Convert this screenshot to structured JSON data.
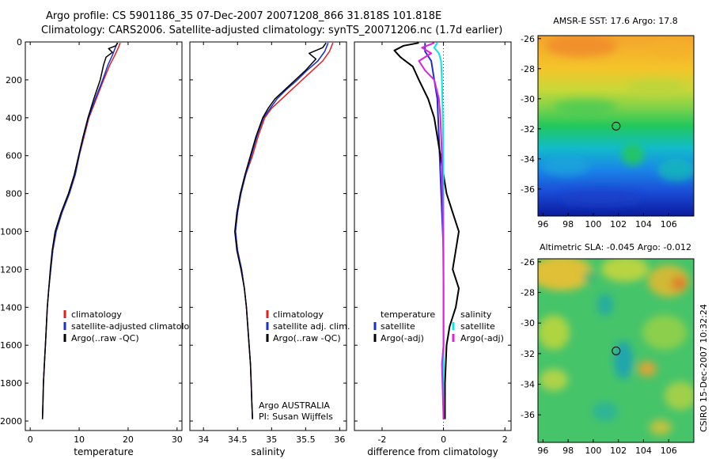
{
  "figure": {
    "title_line1": "Argo profile: CS 5901186_35 07-Dec-2007 20071208_866 31.818S 101.818E",
    "title_line2": "Climatology: CARS2006. Satellite-adjusted climatology: synTS_20071206.nc (1.7d earlier)",
    "credit": "CSIRO 15-Dec-2007 10:32:24"
  },
  "colors": {
    "climatology": "#e02020",
    "satellite": "#1a2ecc",
    "argo": "#000000",
    "satellite_salinity": "#00e8e8",
    "argo_salinity": "#e020e0"
  },
  "chart_data": [
    {
      "type": "line",
      "name": "temperature-profile",
      "xlabel": "temperature",
      "xlim": [
        -1,
        31
      ],
      "ylim": [
        2050,
        0
      ],
      "xticks": [
        0,
        10,
        20,
        30
      ],
      "yticks": [
        0,
        200,
        400,
        600,
        800,
        1000,
        1200,
        1400,
        1600,
        1800,
        2000
      ],
      "legend": [
        "climatology",
        "satellite-adjusted climatology",
        "Argo(..raw -QC)"
      ],
      "series": [
        {
          "name": "climatology",
          "points": [
            [
              18.4,
              5
            ],
            [
              18.0,
              30
            ],
            [
              17.3,
              70
            ],
            [
              16.3,
              120
            ],
            [
              15.0,
              200
            ],
            [
              13.5,
              300
            ],
            [
              12.0,
              400
            ],
            [
              11.0,
              500
            ],
            [
              10.0,
              600
            ],
            [
              9.2,
              700
            ],
            [
              8.0,
              800
            ],
            [
              6.5,
              900
            ],
            [
              5.3,
              1000
            ],
            [
              4.6,
              1100
            ],
            [
              4.2,
              1200
            ],
            [
              3.8,
              1300
            ],
            [
              3.5,
              1400
            ],
            [
              3.3,
              1500
            ],
            [
              3.1,
              1600
            ],
            [
              2.9,
              1700
            ],
            [
              2.7,
              1800
            ],
            [
              2.6,
              1900
            ],
            [
              2.5,
              1990
            ]
          ]
        },
        {
          "name": "satellite-adjusted climatology",
          "points": [
            [
              17.8,
              5
            ],
            [
              17.4,
              30
            ],
            [
              16.8,
              70
            ],
            [
              15.9,
              120
            ],
            [
              14.8,
              200
            ],
            [
              13.3,
              300
            ],
            [
              11.9,
              400
            ],
            [
              10.9,
              500
            ],
            [
              10.0,
              600
            ],
            [
              9.2,
              700
            ],
            [
              8.0,
              800
            ],
            [
              6.5,
              900
            ],
            [
              5.3,
              1000
            ],
            [
              4.6,
              1100
            ],
            [
              4.2,
              1200
            ],
            [
              3.8,
              1300
            ],
            [
              3.5,
              1400
            ],
            [
              3.3,
              1500
            ],
            [
              3.1,
              1600
            ],
            [
              2.9,
              1700
            ],
            [
              2.7,
              1800
            ],
            [
              2.6,
              1900
            ],
            [
              2.5,
              1990
            ]
          ]
        },
        {
          "name": "Argo(..raw -QC)",
          "points": [
            [
              17.9,
              5
            ],
            [
              17.5,
              20
            ],
            [
              16.0,
              35
            ],
            [
              16.8,
              55
            ],
            [
              15.5,
              80
            ],
            [
              15.0,
              120
            ],
            [
              14.3,
              200
            ],
            [
              13.0,
              300
            ],
            [
              11.8,
              400
            ],
            [
              10.8,
              500
            ],
            [
              9.9,
              600
            ],
            [
              9.0,
              700
            ],
            [
              7.8,
              800
            ],
            [
              6.3,
              900
            ],
            [
              5.1,
              1000
            ],
            [
              4.5,
              1100
            ],
            [
              4.1,
              1200
            ],
            [
              3.8,
              1300
            ],
            [
              3.5,
              1400
            ],
            [
              3.3,
              1500
            ],
            [
              3.1,
              1600
            ],
            [
              2.9,
              1700
            ],
            [
              2.7,
              1800
            ],
            [
              2.6,
              1900
            ],
            [
              2.5,
              1990
            ]
          ]
        }
      ]
    },
    {
      "type": "line",
      "name": "salinity-profile",
      "xlabel": "salinity",
      "xlim": [
        33.8,
        36.1
      ],
      "ylim": [
        2050,
        0
      ],
      "xticks": [
        34,
        34.5,
        35,
        35.5,
        36
      ],
      "legend": [
        "climatology",
        "satellite adj. clim.",
        "Argo(..raw -QC)"
      ],
      "annotation_line1": "Argo AUSTRALIA",
      "annotation_line2": "PI: Susan Wijffels",
      "series": [
        {
          "name": "climatology",
          "points": [
            [
              35.9,
              5
            ],
            [
              35.85,
              50
            ],
            [
              35.75,
              100
            ],
            [
              35.6,
              150
            ],
            [
              35.45,
              200
            ],
            [
              35.3,
              250
            ],
            [
              35.15,
              300
            ],
            [
              35.0,
              350
            ],
            [
              34.9,
              400
            ],
            [
              34.8,
              500
            ],
            [
              34.72,
              600
            ],
            [
              34.62,
              700
            ],
            [
              34.55,
              800
            ],
            [
              34.5,
              900
            ],
            [
              34.47,
              1000
            ],
            [
              34.5,
              1100
            ],
            [
              34.56,
              1200
            ],
            [
              34.6,
              1300
            ],
            [
              34.63,
              1400
            ],
            [
              34.65,
              1500
            ],
            [
              34.67,
              1600
            ],
            [
              34.69,
              1700
            ],
            [
              34.7,
              1800
            ],
            [
              34.71,
              1900
            ],
            [
              34.72,
              1990
            ]
          ]
        },
        {
          "name": "satellite adj. clim.",
          "points": [
            [
              35.83,
              5
            ],
            [
              35.78,
              50
            ],
            [
              35.68,
              100
            ],
            [
              35.52,
              150
            ],
            [
              35.38,
              200
            ],
            [
              35.22,
              250
            ],
            [
              35.08,
              300
            ],
            [
              34.98,
              350
            ],
            [
              34.88,
              400
            ],
            [
              34.78,
              500
            ],
            [
              34.7,
              600
            ],
            [
              34.62,
              700
            ],
            [
              34.55,
              800
            ],
            [
              34.5,
              900
            ],
            [
              34.47,
              1000
            ],
            [
              34.5,
              1100
            ],
            [
              34.56,
              1200
            ],
            [
              34.6,
              1300
            ],
            [
              34.63,
              1400
            ],
            [
              34.65,
              1500
            ],
            [
              34.67,
              1600
            ],
            [
              34.69,
              1700
            ],
            [
              34.7,
              1800
            ],
            [
              34.71,
              1900
            ],
            [
              34.72,
              1990
            ]
          ]
        },
        {
          "name": "Argo(..raw -QC)",
          "points": [
            [
              35.8,
              5
            ],
            [
              35.75,
              30
            ],
            [
              35.55,
              60
            ],
            [
              35.65,
              90
            ],
            [
              35.5,
              150
            ],
            [
              35.35,
              200
            ],
            [
              35.2,
              250
            ],
            [
              35.05,
              300
            ],
            [
              34.95,
              350
            ],
            [
              34.87,
              400
            ],
            [
              34.77,
              500
            ],
            [
              34.69,
              600
            ],
            [
              34.61,
              700
            ],
            [
              34.54,
              800
            ],
            [
              34.49,
              900
            ],
            [
              34.46,
              1000
            ],
            [
              34.49,
              1100
            ],
            [
              34.55,
              1200
            ],
            [
              34.6,
              1300
            ],
            [
              34.63,
              1400
            ],
            [
              34.65,
              1500
            ],
            [
              34.67,
              1600
            ],
            [
              34.69,
              1700
            ],
            [
              34.7,
              1800
            ],
            [
              34.71,
              1900
            ],
            [
              34.72,
              1990
            ]
          ]
        }
      ]
    },
    {
      "type": "line",
      "name": "difference-profile",
      "xlabel": "difference from climatology",
      "xlim": [
        -2.9,
        2.2
      ],
      "ylim": [
        2050,
        0
      ],
      "xticks": [
        -2,
        0,
        2
      ],
      "legend_temperature_header": "temperature",
      "legend_salinity_header": "salinity",
      "legend_temperature": [
        "satellite",
        "Argo(-adj)"
      ],
      "legend_salinity": [
        "satellite",
        "Argo(-adj)"
      ],
      "series": [
        {
          "name": "temperature satellite",
          "points": [
            [
              -0.6,
              5
            ],
            [
              -0.6,
              50
            ],
            [
              -0.4,
              100
            ],
            [
              -0.3,
              200
            ],
            [
              -0.2,
              300
            ],
            [
              -0.15,
              500
            ],
            [
              -0.1,
              700
            ],
            [
              -0.05,
              900
            ],
            [
              0.0,
              1100
            ],
            [
              0.0,
              1500
            ],
            [
              0.0,
              1990
            ]
          ]
        },
        {
          "name": "temperature Argo(-adj)",
          "points": [
            [
              -0.8,
              5
            ],
            [
              -1.3,
              20
            ],
            [
              -1.6,
              45
            ],
            [
              -1.4,
              80
            ],
            [
              -1.0,
              130
            ],
            [
              -0.8,
              200
            ],
            [
              -0.5,
              300
            ],
            [
              -0.3,
              400
            ],
            [
              -0.1,
              600
            ],
            [
              0.1,
              800
            ],
            [
              0.3,
              900
            ],
            [
              0.5,
              1000
            ],
            [
              0.4,
              1100
            ],
            [
              0.3,
              1200
            ],
            [
              0.5,
              1300
            ],
            [
              0.4,
              1400
            ],
            [
              0.2,
              1500
            ],
            [
              0.1,
              1600
            ],
            [
              0.05,
              1800
            ],
            [
              0.05,
              1990
            ]
          ]
        },
        {
          "name": "salinity satellite",
          "points": [
            [
              -0.2,
              5
            ],
            [
              -0.3,
              30
            ],
            [
              -0.15,
              60
            ],
            [
              -0.08,
              100
            ],
            [
              -0.05,
              200
            ],
            [
              -0.02,
              400
            ],
            [
              0.0,
              800
            ],
            [
              0.0,
              1200
            ],
            [
              0.0,
              1600
            ],
            [
              0.0,
              1990
            ]
          ]
        },
        {
          "name": "salinity Argo(-adj)",
          "points": [
            [
              -0.3,
              5
            ],
            [
              -0.7,
              30
            ],
            [
              -0.4,
              60
            ],
            [
              -0.8,
              100
            ],
            [
              -0.6,
              150
            ],
            [
              -0.3,
              200
            ],
            [
              -0.15,
              300
            ],
            [
              -0.1,
              400
            ],
            [
              -0.05,
              600
            ],
            [
              -0.02,
              900
            ],
            [
              0.0,
              1300
            ],
            [
              0.0,
              1600
            ],
            [
              -0.05,
              1700
            ],
            [
              0.0,
              1990
            ]
          ]
        }
      ]
    },
    {
      "type": "heatmap",
      "name": "amsr-sst-map",
      "title": "AMSR-E SST: 17.6 Argo: 17.8",
      "xlim": [
        95.6,
        108
      ],
      "ylim": [
        -37.8,
        -25.8
      ],
      "xticks": [
        96,
        98,
        100,
        102,
        104,
        106
      ],
      "yticks": [
        -26,
        -28,
        -30,
        -32,
        -34,
        -36
      ],
      "marker": [
        101.818,
        -31.818
      ]
    },
    {
      "type": "heatmap",
      "name": "altimetric-sla-map",
      "title": "Altimetric SLA: -0.045 Argo: -0.012",
      "xlim": [
        95.6,
        108
      ],
      "ylim": [
        -37.8,
        -25.8
      ],
      "xticks": [
        96,
        98,
        100,
        102,
        104,
        106
      ],
      "yticks": [
        -26,
        -28,
        -30,
        -32,
        -34,
        -36
      ],
      "marker": [
        101.818,
        -31.818
      ]
    }
  ]
}
